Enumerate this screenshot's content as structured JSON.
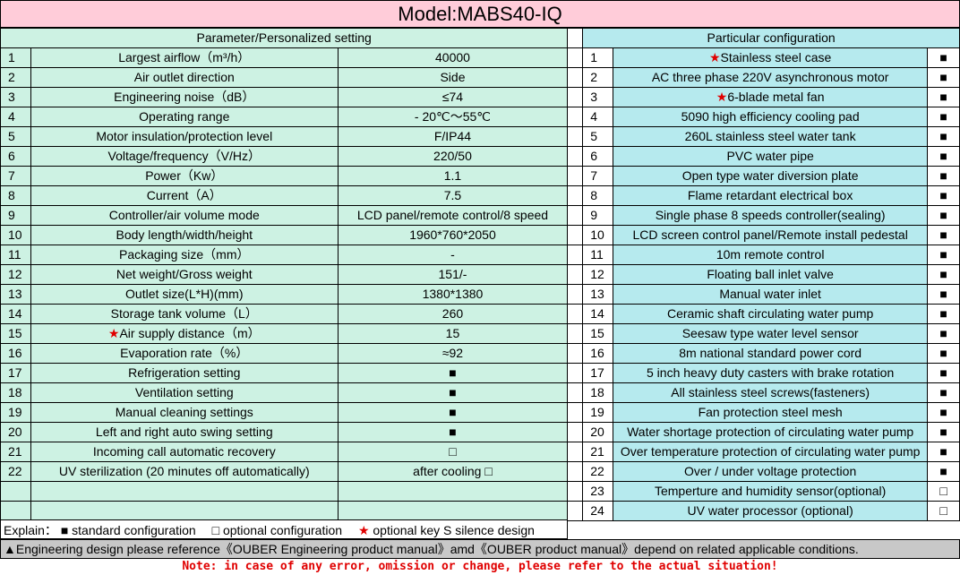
{
  "title": "Model:MABS40-IQ",
  "left_header": "Parameter/Personalized setting",
  "right_header": "Particular configuration",
  "left_rows": [
    {
      "no": "1",
      "label": "Largest airflow（m³/h）",
      "value": "40000"
    },
    {
      "no": "2",
      "label": "Air outlet direction",
      "value": "Side"
    },
    {
      "no": "3",
      "label": "Engineering noise（dB）",
      "value": "≤74"
    },
    {
      "no": "4",
      "label": "Operating range",
      "value": "- 20℃～55℃"
    },
    {
      "no": "5",
      "label": "Motor insulation/protection level",
      "value": "F/IP44"
    },
    {
      "no": "6",
      "label": "Voltage/frequency（V/Hz）",
      "value": "220/50"
    },
    {
      "no": "7",
      "label": "Power（Kw）",
      "value": "1.1"
    },
    {
      "no": "8",
      "label": "Current（A）",
      "value": "7.5"
    },
    {
      "no": "9",
      "label": "Controller/air volume mode",
      "value": "LCD panel/remote control/8 speed"
    },
    {
      "no": "10",
      "label": "Body length/width/height",
      "value": "1960*760*2050"
    },
    {
      "no": "11",
      "label": "Packaging size（mm）",
      "value": "-"
    },
    {
      "no": "12",
      "label": "Net weight/Gross weight",
      "value": "151/-"
    },
    {
      "no": "13",
      "label": "Outlet size(L*H)(mm)",
      "value": "1380*1380"
    },
    {
      "no": "14",
      "label": "Storage tank volume（L）",
      "value": "260"
    },
    {
      "no": "15",
      "label": "Air supply distance（m）",
      "value": "15",
      "star": true
    },
    {
      "no": "16",
      "label": "Evaporation rate（%）",
      "value": "≈92"
    },
    {
      "no": "17",
      "label": "Refrigeration setting",
      "value": "■"
    },
    {
      "no": "18",
      "label": "Ventilation setting",
      "value": "■"
    },
    {
      "no": "19",
      "label": "Manual cleaning settings",
      "value": "■"
    },
    {
      "no": "20",
      "label": "Left and right auto swing setting",
      "value": "■"
    },
    {
      "no": "21",
      "label": "Incoming call automatic recovery",
      "value": "□"
    },
    {
      "no": "22",
      "label": "UV sterilization (20 minutes off automatically)",
      "value": "after cooling □"
    },
    {
      "no": "",
      "label": "",
      "value": ""
    },
    {
      "no": "",
      "label": "",
      "value": ""
    }
  ],
  "right_rows": [
    {
      "no": "1",
      "label": "Stainless steel case",
      "mark": "■",
      "star": true
    },
    {
      "no": "2",
      "label": "AC three phase 220V asynchronous motor",
      "mark": "■"
    },
    {
      "no": "3",
      "label": "6-blade metal fan",
      "mark": "■",
      "star": true
    },
    {
      "no": "4",
      "label": "5090 high efficiency cooling pad",
      "mark": "■"
    },
    {
      "no": "5",
      "label": "260L stainless steel water tank",
      "mark": "■"
    },
    {
      "no": "6",
      "label": "PVC water pipe",
      "mark": "■"
    },
    {
      "no": "7",
      "label": "Open type water diversion plate",
      "mark": "■"
    },
    {
      "no": "8",
      "label": "Flame retardant electrical box",
      "mark": "■"
    },
    {
      "no": "9",
      "label": "Single phase 8 speeds controller(sealing)",
      "mark": "■"
    },
    {
      "no": "10",
      "label": "LCD screen control panel/Remote install pedestal",
      "mark": "■"
    },
    {
      "no": "11",
      "label": "10m remote control",
      "mark": "■"
    },
    {
      "no": "12",
      "label": "Floating ball inlet valve",
      "mark": "■"
    },
    {
      "no": "13",
      "label": "Manual water inlet",
      "mark": "■"
    },
    {
      "no": "14",
      "label": "Ceramic shaft circulating water pump",
      "mark": "■"
    },
    {
      "no": "15",
      "label": "Seesaw type water level sensor",
      "mark": "■"
    },
    {
      "no": "16",
      "label": "8m national standard power cord",
      "mark": "■"
    },
    {
      "no": "17",
      "label": "5 inch heavy duty casters with brake rotation",
      "mark": "■"
    },
    {
      "no": "18",
      "label": "All stainless steel screws(fasteners)",
      "mark": "■"
    },
    {
      "no": "19",
      "label": "Fan protection steel mesh",
      "mark": "■"
    },
    {
      "no": "20",
      "label": "Water shortage protection of circulating water pump",
      "mark": "■"
    },
    {
      "no": "21",
      "label": "Over temperature protection of circulating water pump",
      "mark": "■"
    },
    {
      "no": "22",
      "label": "Over / under voltage protection",
      "mark": "■"
    },
    {
      "no": "23",
      "label": "Temperture and humidity sensor(optional)",
      "mark": "□"
    },
    {
      "no": "24",
      "label": "UV water processor (optional)",
      "mark": "□"
    }
  ],
  "explain": {
    "prefix": "Explain：",
    "standard": "■ standard configuration",
    "optional": "□ optional configuration",
    "silence": "optional key S silence design"
  },
  "star_glyph": "★",
  "engineering_note": "▲Engineering design please reference《OUBER Engineering product manual》amd《OUBER product manual》depend on related applicable conditions.",
  "footer_note": "Note: in case of any error, omission or change, please refer to the actual situation!",
  "colors": {
    "title_bg": "#ffccd9",
    "left_bg": "#cdf2e3",
    "right_bg": "#b6eaee",
    "note": "#e00000",
    "eng_bg": "#c8c8c8"
  }
}
